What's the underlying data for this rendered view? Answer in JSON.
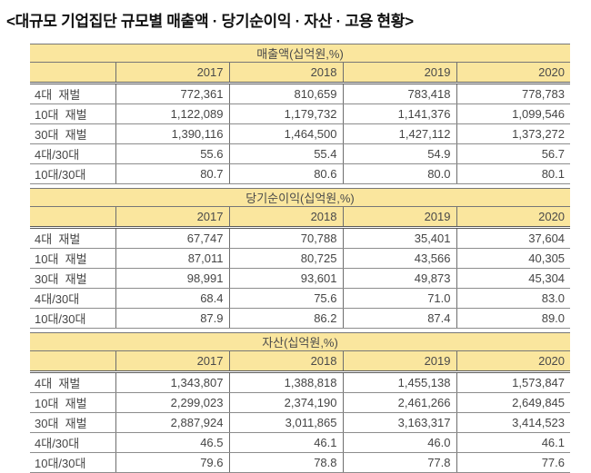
{
  "title": "<대규모 기업집단 규모별 매출액 · 당기순이익 · 자산 · 고용 현황>",
  "columns": [
    "2017",
    "2018",
    "2019",
    "2020"
  ],
  "sections": [
    {
      "header": "매출액(십억원,%)",
      "rows": [
        {
          "label": "4대  재벌",
          "values": [
            "772,361",
            "810,659",
            "783,418",
            "778,783"
          ]
        },
        {
          "label": "10대  재벌",
          "values": [
            "1,122,089",
            "1,179,732",
            "1,141,376",
            "1,099,546"
          ]
        },
        {
          "label": "30대  재벌",
          "values": [
            "1,390,116",
            "1,464,500",
            "1,427,112",
            "1,373,272"
          ]
        },
        {
          "label": "4대/30대",
          "values": [
            "55.6",
            "55.4",
            "54.9",
            "56.7"
          ]
        },
        {
          "label": "10대/30대",
          "values": [
            "80.7",
            "80.6",
            "80.0",
            "80.1"
          ]
        }
      ]
    },
    {
      "header": "당기순이익(십억원,%)",
      "rows": [
        {
          "label": "4대  재벌",
          "values": [
            "67,747",
            "70,788",
            "35,401",
            "37,604"
          ]
        },
        {
          "label": "10대  재벌",
          "values": [
            "87,011",
            "80,725",
            "43,566",
            "40,305"
          ]
        },
        {
          "label": "30대  재벌",
          "values": [
            "98,991",
            "93,601",
            "49,873",
            "45,304"
          ]
        },
        {
          "label": "4대/30대",
          "values": [
            "68.4",
            "75.6",
            "71.0",
            "83.0"
          ]
        },
        {
          "label": "10대/30대",
          "values": [
            "87.9",
            "86.2",
            "87.4",
            "89.0"
          ]
        }
      ]
    },
    {
      "header": "자산(십억원,%)",
      "rows": [
        {
          "label": "4대  재벌",
          "values": [
            "1,343,807",
            "1,388,818",
            "1,455,138",
            "1,573,847"
          ]
        },
        {
          "label": "10대  재벌",
          "values": [
            "2,299,023",
            "2,374,190",
            "2,461,266",
            "2,649,845"
          ]
        },
        {
          "label": "30대  재벌",
          "values": [
            "2,887,924",
            "3,011,865",
            "3,163,317",
            "3,414,523"
          ]
        },
        {
          "label": "4대/30대",
          "values": [
            "46.5",
            "46.1",
            "46.0",
            "46.1"
          ]
        },
        {
          "label": "10대/30대",
          "values": [
            "79.6",
            "78.8",
            "77.8",
            "77.6"
          ]
        }
      ]
    }
  ],
  "colors": {
    "header_bg": "#FAE69E",
    "border": "#6e6e6e",
    "text": "#454545"
  }
}
